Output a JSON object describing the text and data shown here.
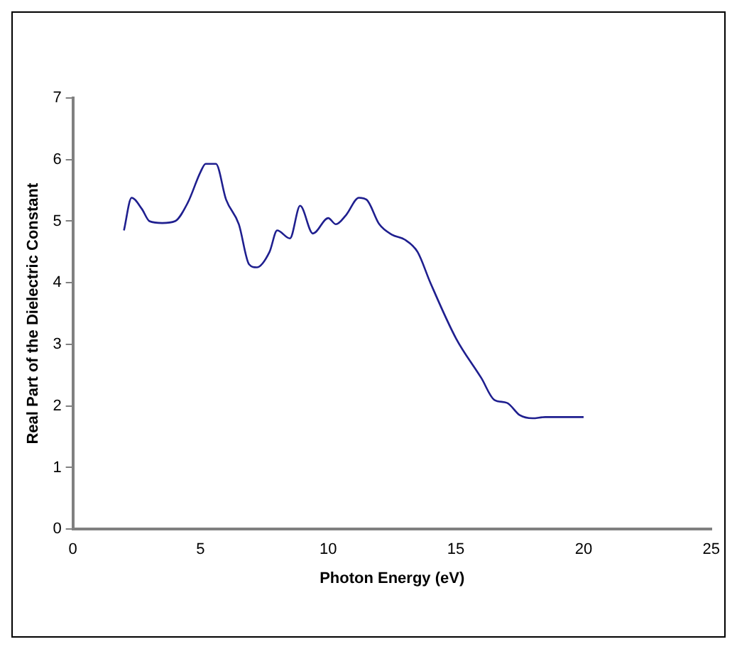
{
  "chart_data": {
    "type": "line",
    "xlabel": "Photon Energy (eV)",
    "ylabel": "Real Part of the Dielectric Constant",
    "series": [
      {
        "color": "#1f1f8f",
        "x": [
          2,
          2.3,
          2.7,
          3,
          3.5,
          4,
          4.5,
          5,
          5.2,
          5.6,
          6,
          6.5,
          6.9,
          7.2,
          7.7,
          8,
          8.5,
          8.9,
          9.4,
          10,
          10.3,
          10.7,
          11.2,
          11.5,
          12,
          12.5,
          13,
          13.5,
          14,
          15,
          16,
          16.5,
          17,
          17.5,
          18,
          18.5,
          20
        ],
        "values": [
          4.85,
          5.38,
          5.2,
          5.0,
          4.97,
          5.0,
          5.3,
          5.8,
          5.93,
          5.93,
          5.35,
          4.95,
          4.3,
          4.25,
          4.5,
          4.85,
          4.72,
          5.25,
          4.8,
          5.05,
          4.95,
          5.1,
          5.38,
          5.35,
          4.95,
          4.78,
          4.7,
          4.5,
          4.0,
          3.1,
          2.45,
          2.1,
          2.05,
          1.85,
          1.8,
          1.82,
          1.82
        ]
      }
    ],
    "xlim": [
      0,
      25
    ],
    "xticks": [
      0,
      5,
      10,
      15,
      20,
      25
    ],
    "ylim": [
      0,
      7
    ],
    "yticks": [
      0,
      1,
      2,
      3,
      4,
      5,
      6,
      7
    ],
    "grid": false,
    "legend": false,
    "marker": "none",
    "line_style": "solid"
  }
}
